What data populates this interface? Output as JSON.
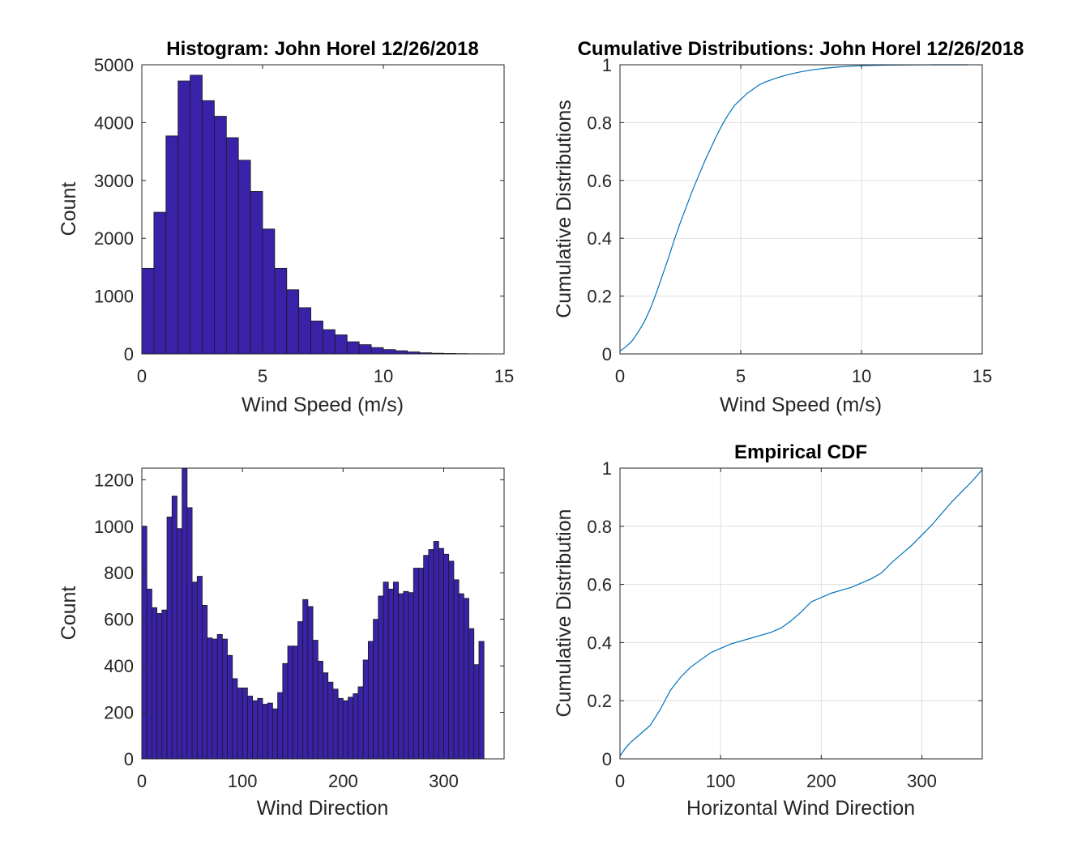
{
  "chart_data": [
    {
      "id": "hist_speed",
      "type": "bar",
      "title": "Histogram: John Horel 12/26/2018",
      "xlabel": "Wind Speed (m/s)",
      "ylabel": "Count",
      "xlim": [
        0,
        15
      ],
      "ylim": [
        0,
        5000
      ],
      "xticks": [
        0,
        5,
        10,
        15
      ],
      "yticks": [
        0,
        1000,
        2000,
        3000,
        4000,
        5000
      ],
      "grid": false,
      "bar_color": "#3A22A8",
      "bin_width": 0.5,
      "bin_start": 0,
      "values": [
        1480,
        2450,
        3770,
        4720,
        4820,
        4380,
        4110,
        3740,
        3350,
        2810,
        2160,
        1480,
        1110,
        800,
        570,
        420,
        330,
        210,
        160,
        110,
        75,
        55,
        35,
        20,
        12,
        8,
        5,
        3,
        2,
        1
      ]
    },
    {
      "id": "cdf_speed",
      "type": "line",
      "title": "Cumulative Distributions: John Horel 12/26/2018",
      "xlabel": "Wind Speed (m/s)",
      "ylabel": "Cumulative Distributions",
      "xlim": [
        0,
        15
      ],
      "ylim": [
        0,
        1
      ],
      "xticks": [
        0,
        5,
        10,
        15
      ],
      "yticks": [
        0,
        0.2,
        0.4,
        0.6,
        0.8,
        1
      ],
      "grid": true,
      "line_color": "#0072BD",
      "x": [
        0,
        0.25,
        0.5,
        0.75,
        1,
        1.25,
        1.5,
        1.75,
        2,
        2.25,
        2.5,
        2.75,
        3,
        3.25,
        3.5,
        3.75,
        4,
        4.25,
        4.5,
        4.75,
        5,
        5.25,
        5.5,
        5.75,
        6,
        6.5,
        7,
        7.5,
        8,
        8.5,
        9,
        9.5,
        10,
        11,
        12,
        13,
        14.4
      ],
      "y": [
        0.01,
        0.025,
        0.045,
        0.075,
        0.11,
        0.155,
        0.21,
        0.27,
        0.33,
        0.395,
        0.455,
        0.51,
        0.565,
        0.615,
        0.665,
        0.71,
        0.755,
        0.795,
        0.83,
        0.86,
        0.88,
        0.9,
        0.915,
        0.93,
        0.94,
        0.955,
        0.967,
        0.976,
        0.983,
        0.988,
        0.992,
        0.995,
        0.997,
        0.999,
        0.9995,
        1.0,
        1.0
      ]
    },
    {
      "id": "hist_dir",
      "type": "bar",
      "title": "",
      "xlabel": "Wind Direction",
      "ylabel": "Count",
      "xlim": [
        0,
        360
      ],
      "ylim": [
        0,
        1250
      ],
      "xticks": [
        0,
        100,
        200,
        300
      ],
      "yticks": [
        0,
        200,
        400,
        600,
        800,
        1000,
        1200
      ],
      "grid": false,
      "bar_color": "#3A22A8",
      "bin_width": 5,
      "bin_start": 0,
      "values": [
        1000,
        730,
        650,
        625,
        640,
        1040,
        1130,
        990,
        1250,
        1080,
        760,
        785,
        660,
        520,
        515,
        535,
        515,
        445,
        345,
        305,
        305,
        270,
        250,
        260,
        235,
        240,
        215,
        285,
        410,
        485,
        485,
        590,
        685,
        655,
        510,
        420,
        370,
        330,
        300,
        260,
        250,
        265,
        280,
        310,
        425,
        505,
        600,
        700,
        760,
        730,
        760,
        710,
        720,
        715,
        820,
        820,
        875,
        900,
        935,
        905,
        880,
        850,
        770,
        710,
        690,
        560,
        405,
        505
      ]
    },
    {
      "id": "cdf_dir",
      "type": "line",
      "title": "Empirical CDF",
      "xlabel": "Horizontal Wind Direction",
      "ylabel": "Cumulative Distribution",
      "xlim": [
        0,
        360
      ],
      "ylim": [
        0,
        1
      ],
      "xticks": [
        0,
        100,
        200,
        300
      ],
      "yticks": [
        0,
        0.2,
        0.4,
        0.6,
        0.8,
        1
      ],
      "grid": true,
      "line_color": "#0072BD",
      "x": [
        0,
        5,
        10,
        20,
        30,
        40,
        50,
        60,
        70,
        80,
        90,
        100,
        110,
        120,
        130,
        140,
        150,
        160,
        170,
        180,
        190,
        200,
        210,
        220,
        230,
        240,
        250,
        260,
        270,
        280,
        290,
        300,
        310,
        320,
        330,
        340,
        350,
        360
      ],
      "y": [
        0.01,
        0.035,
        0.055,
        0.085,
        0.115,
        0.17,
        0.235,
        0.28,
        0.315,
        0.34,
        0.365,
        0.38,
        0.395,
        0.405,
        0.415,
        0.425,
        0.435,
        0.45,
        0.475,
        0.505,
        0.54,
        0.555,
        0.57,
        0.58,
        0.59,
        0.605,
        0.62,
        0.64,
        0.675,
        0.705,
        0.735,
        0.77,
        0.805,
        0.845,
        0.885,
        0.92,
        0.955,
        0.995
      ]
    }
  ]
}
